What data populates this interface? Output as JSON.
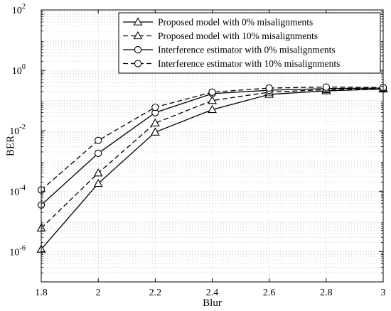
{
  "chart_data": {
    "type": "line",
    "xlabel": "Blur",
    "ylabel": "BER",
    "x": [
      1.8,
      2.0,
      2.2,
      2.4,
      2.6,
      2.8,
      3.0
    ],
    "x_tick_labels": [
      "1.8",
      "2",
      "2.2",
      "2.4",
      "2.6",
      "2.8",
      "3"
    ],
    "xlim": [
      1.8,
      3.0
    ],
    "ylim": [
      1e-07,
      100
    ],
    "yscale": "log",
    "y_ticks": [
      {
        "value": 1e-06,
        "base": "10",
        "exp": "-6"
      },
      {
        "value": 0.0001,
        "base": "10",
        "exp": "-4"
      },
      {
        "value": 0.01,
        "base": "10",
        "exp": "-2"
      },
      {
        "value": 1,
        "base": "10",
        "exp": "0"
      },
      {
        "value": 100,
        "base": "10",
        "exp": "2"
      }
    ],
    "grid": true,
    "legend_position": "top-right",
    "series": [
      {
        "name": "Proposed model with 0% misalignments",
        "marker": "triangle",
        "line_style": "solid",
        "values": [
          1.2e-06,
          0.00018,
          0.009,
          0.05,
          0.16,
          0.21,
          0.24
        ]
      },
      {
        "name": "Proposed model with 10% misalignments",
        "marker": "triangle",
        "line_style": "dashed",
        "values": [
          6e-06,
          0.0004,
          0.018,
          0.1,
          0.19,
          0.23,
          0.25
        ]
      },
      {
        "name": "Interference estimator with 0% misalignments",
        "marker": "circle",
        "line_style": "solid",
        "values": [
          3.5e-05,
          0.0018,
          0.04,
          0.17,
          0.22,
          0.25,
          0.26
        ]
      },
      {
        "name": "Interference estimator with 10% misalignments",
        "marker": "circle",
        "line_style": "dashed",
        "values": [
          0.00011,
          0.0048,
          0.06,
          0.19,
          0.26,
          0.28,
          0.27
        ]
      }
    ]
  }
}
